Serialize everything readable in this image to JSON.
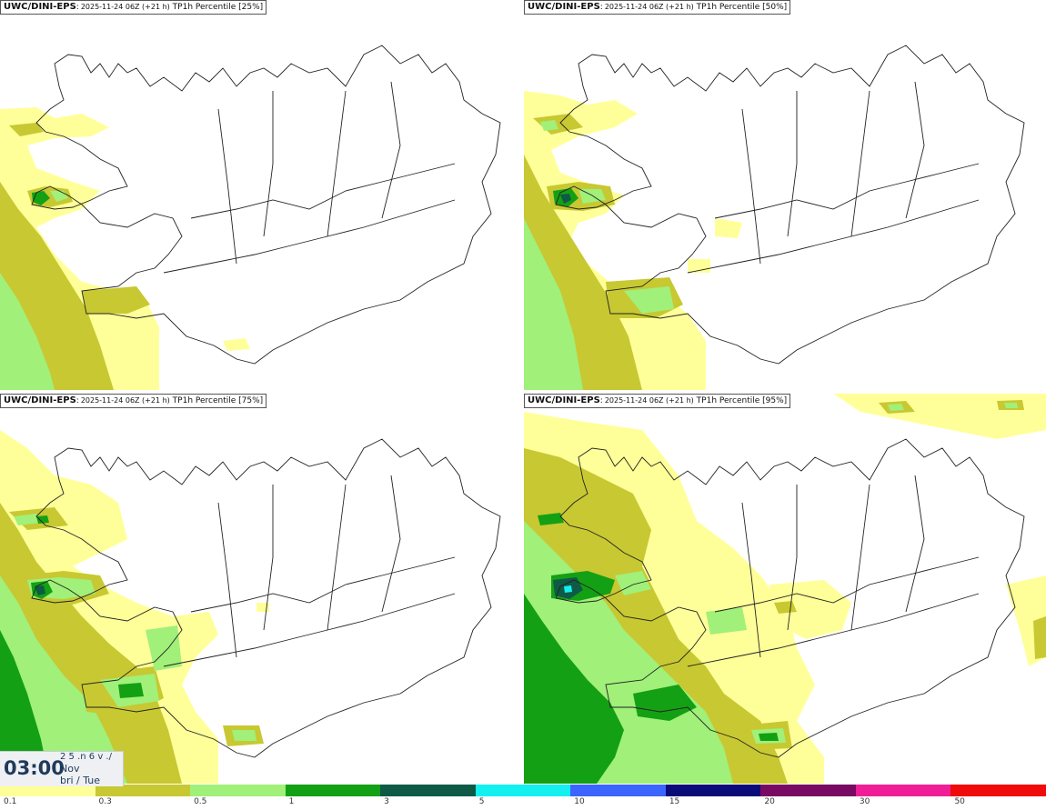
{
  "panels": [
    {
      "model": "UWC/DINI-EPS",
      "run": "2025-11-24 06Z (+21 h)",
      "label": "TP1h Percentile [25%]"
    },
    {
      "model": "UWC/DINI-EPS",
      "run": "2025-11-24 06Z (+21 h)",
      "label": "TP1h Percentile [50%]"
    },
    {
      "model": "UWC/DINI-EPS",
      "run": "2025-11-24 06Z (+21 h)",
      "label": "TP1h Percentile [75%]"
    },
    {
      "model": "UWC/DINI-EPS",
      "run": "2025-11-24 06Z (+21 h)",
      "label": "TP1h Percentile [95%]"
    }
  ],
  "timestamp": {
    "time": "03:00",
    "line1": "2 5 .n 6 v ./",
    "line2": "Nov",
    "line3": "bri / Tue"
  },
  "colorbar": {
    "colors": [
      "#ffff99",
      "#c8c832",
      "#a0f07a",
      "#14a014",
      "#0f5a46",
      "#14f0f0",
      "#3c64ff",
      "#0a0a78",
      "#780a64",
      "#f01e96",
      "#f00a0a"
    ],
    "labels": [
      "0.1",
      "0.3",
      "0.5",
      "1",
      "3",
      "5",
      "10",
      "15",
      "20",
      "30",
      "50"
    ]
  },
  "colors": {
    "light_yellow": "#ffff99",
    "olive": "#c8c832",
    "light_green": "#a0f07a",
    "green": "#14a014",
    "dark_green": "#0f5a46",
    "cyan": "#14f0f0",
    "coast": "#222222"
  }
}
